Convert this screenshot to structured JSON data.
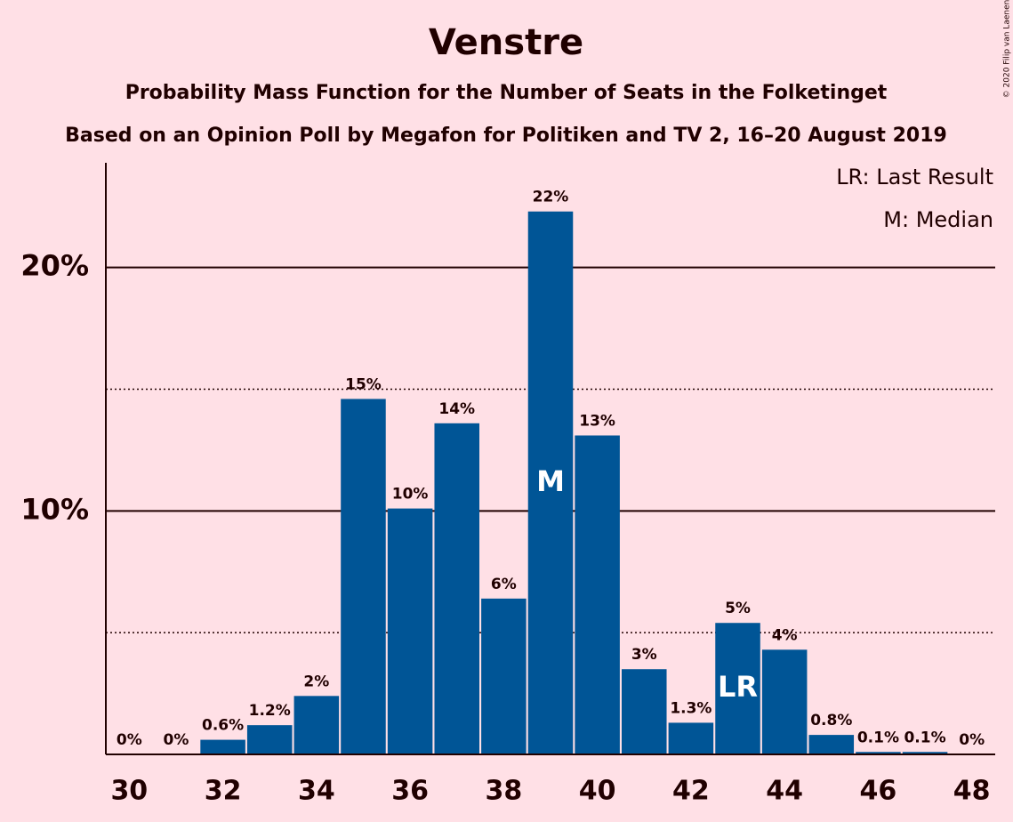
{
  "chart_data": {
    "type": "bar",
    "title": "Venstre",
    "subtitle": "Probability Mass Function for the Number of Seats in the Folketinget",
    "subtitle2": "Based on an Opinion Poll by Megafon for Politiken and TV 2, 16–20 August 2019",
    "copyright": "© 2020 Filip van Laenen",
    "legend": [
      "LR: Last Result",
      "M: Median"
    ],
    "x": [
      30,
      31,
      32,
      33,
      34,
      35,
      36,
      37,
      38,
      39,
      40,
      41,
      42,
      43,
      44,
      45,
      46,
      47,
      48
    ],
    "values": [
      0,
      0,
      0.6,
      1.2,
      2.4,
      14.6,
      10.1,
      13.6,
      6.4,
      22.3,
      13.1,
      3.5,
      1.3,
      5.4,
      4.3,
      0.8,
      0.1,
      0.1,
      0
    ],
    "value_labels": [
      "0%",
      "0%",
      "0.6%",
      "1.2%",
      "2%",
      "15%",
      "10%",
      "14%",
      "6%",
      "22%",
      "13%",
      "3%",
      "1.3%",
      "5%",
      "4%",
      "0.8%",
      "0.1%",
      "0.1%",
      "0%"
    ],
    "color": "#005596",
    "xlim": [
      29.5,
      48.5
    ],
    "xticks": [
      30,
      32,
      34,
      36,
      38,
      40,
      42,
      44,
      46,
      48
    ],
    "ylim": [
      0,
      24.3
    ],
    "yticks": [
      {
        "value": 10,
        "label": "10%"
      },
      {
        "value": 20,
        "label": "20%"
      }
    ],
    "minor_yticks": [
      5,
      15
    ],
    "grid": true,
    "annotations": [
      {
        "text": "M",
        "x": 39
      },
      {
        "text": "LR",
        "x": 43
      }
    ]
  }
}
